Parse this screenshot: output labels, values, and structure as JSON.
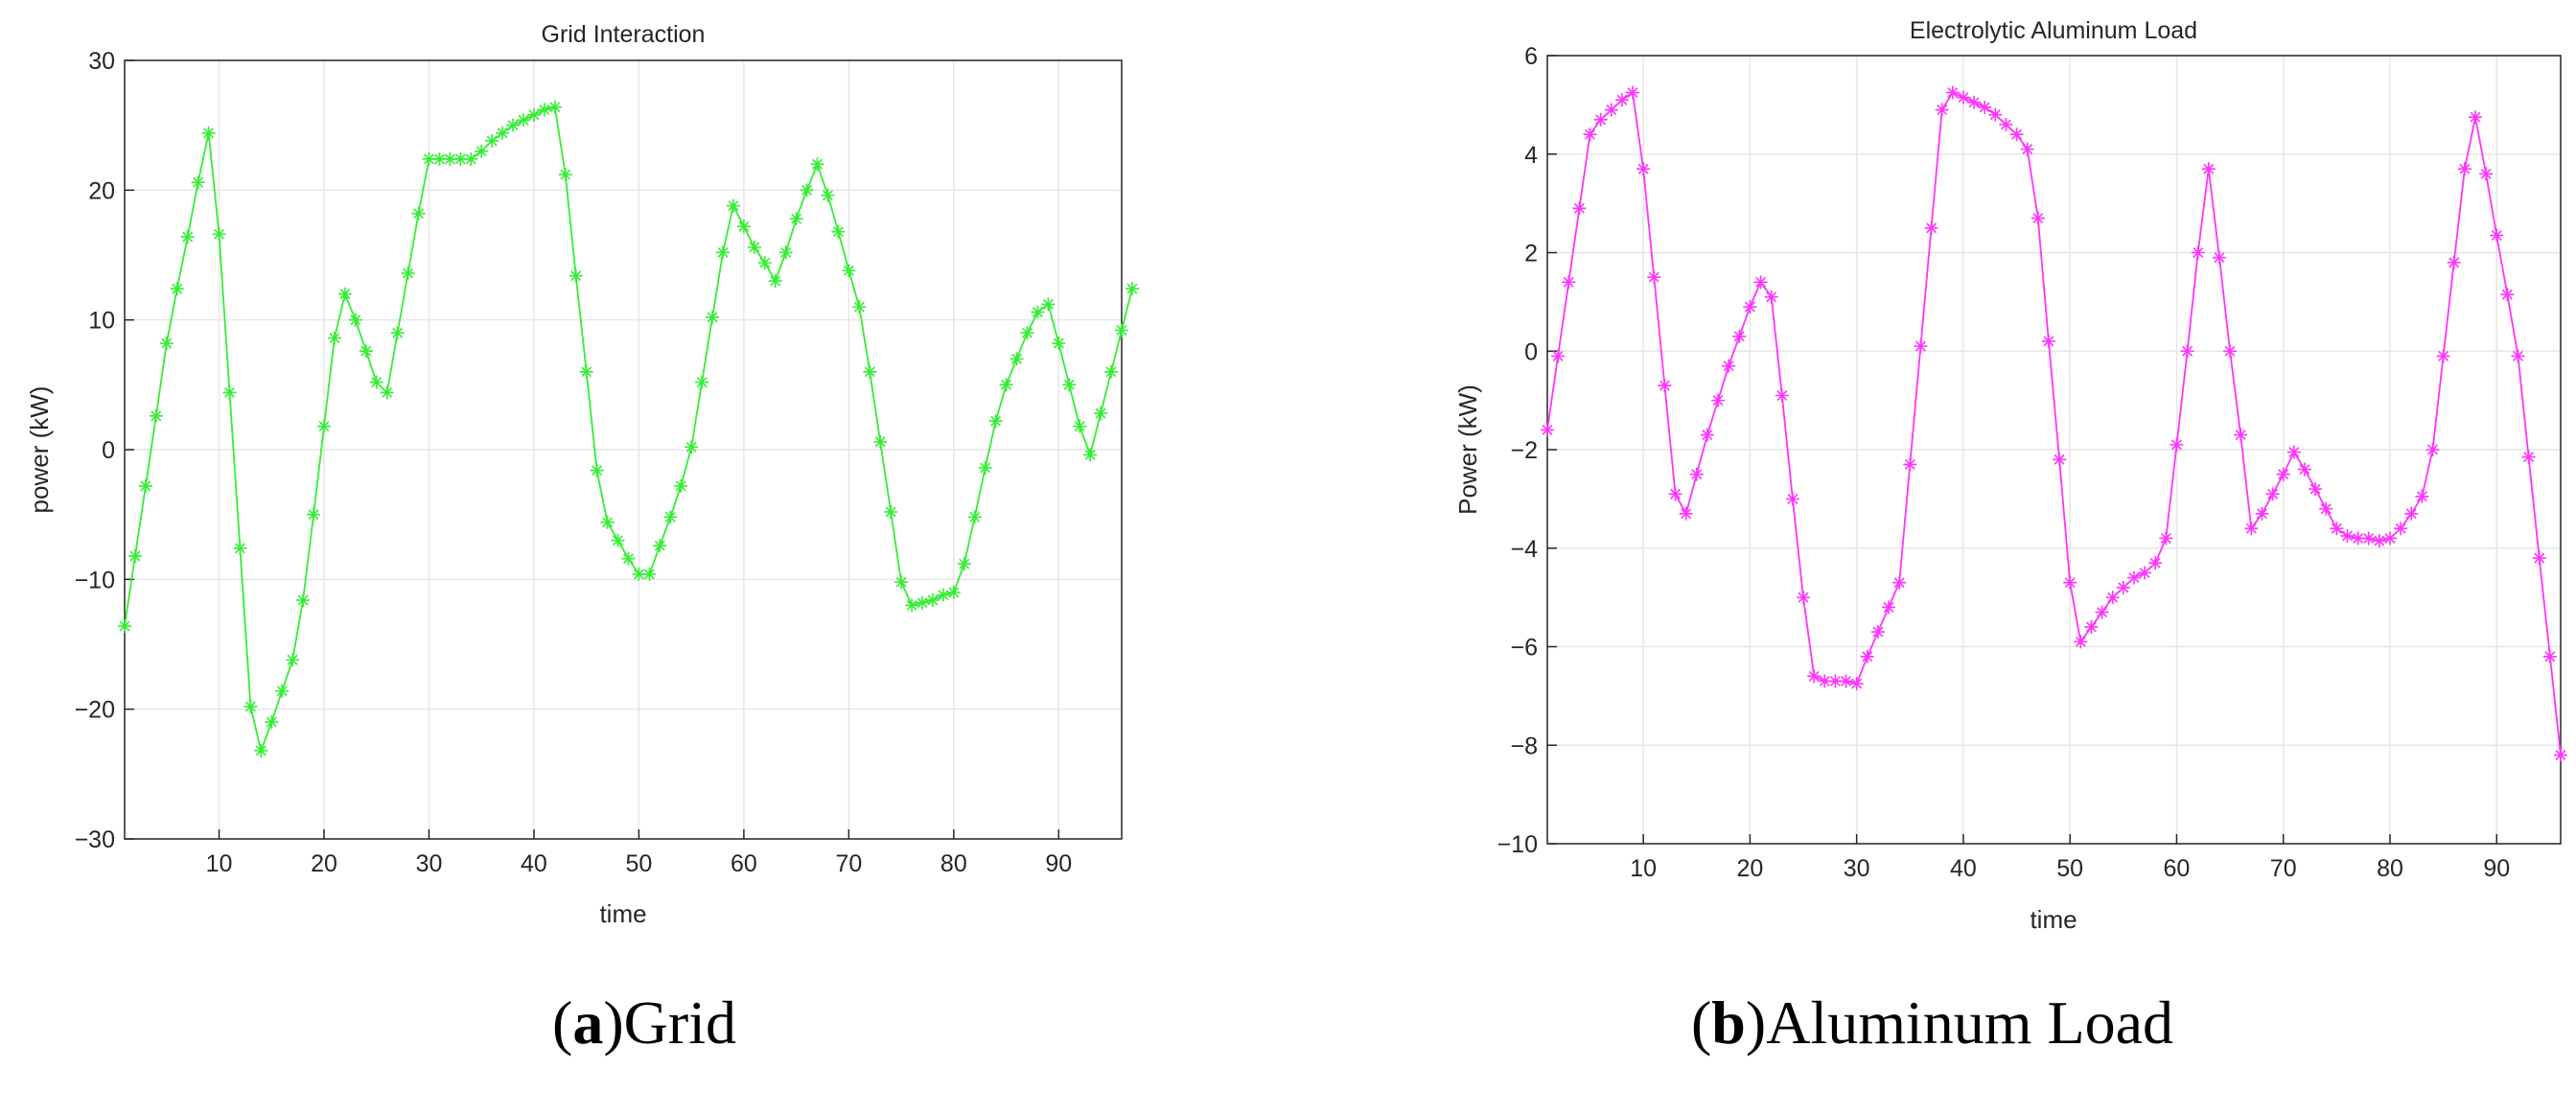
{
  "chart_data": [
    {
      "type": "line",
      "title": "Grid Interaction",
      "xlabel": "time",
      "ylabel": "power (kW)",
      "xlim": [
        1,
        96
      ],
      "ylim": [
        -30,
        30
      ],
      "xticks": [
        10,
        20,
        30,
        40,
        50,
        60,
        70,
        80,
        90
      ],
      "yticks": [
        -30,
        -20,
        -10,
        0,
        10,
        20,
        30
      ],
      "grid": true,
      "color": "#33ee33",
      "marker": "asterisk",
      "series": [
        {
          "values": [
            -13.6,
            -8.2,
            -2.8,
            2.6,
            8.2,
            12.4,
            16.4,
            20.6,
            24.4,
            16.6,
            4.4,
            -7.6,
            -19.8,
            -23.2,
            -21.0,
            -18.6,
            -16.2,
            -11.6,
            -5.0,
            1.8,
            8.6,
            12.0,
            10.0,
            7.6,
            5.2,
            4.4,
            9.0,
            13.6,
            18.2,
            22.4,
            22.4,
            22.4,
            22.4,
            22.4,
            23.0,
            23.8,
            24.4,
            25.0,
            25.4,
            25.8,
            26.2,
            26.4,
            21.2,
            13.4,
            6.0,
            -1.6,
            -5.6,
            -7.0,
            -8.4,
            -9.6,
            -9.6,
            -7.4,
            -5.2,
            -2.8,
            0.2,
            5.2,
            10.2,
            15.2,
            18.8,
            17.2,
            15.6,
            14.4,
            13.0,
            15.2,
            17.8,
            20.0,
            22.0,
            19.6,
            16.8,
            13.8,
            11.0,
            6.0,
            0.6,
            -4.8,
            -10.2,
            -12.0,
            -11.8,
            -11.6,
            -11.2,
            -11.0,
            -8.8,
            -5.2,
            -1.4,
            2.2,
            5.0,
            7.0,
            9.0,
            10.6,
            11.2,
            8.2,
            5.0,
            1.8,
            -0.4,
            2.8,
            6.0,
            9.2,
            12.4
          ]
        }
      ]
    },
    {
      "type": "line",
      "title": "Electrolytic Aluminum Load",
      "xlabel": "time",
      "ylabel": "Power (kW)",
      "xlim": [
        1,
        96
      ],
      "ylim": [
        -10,
        6
      ],
      "xticks": [
        10,
        20,
        30,
        40,
        50,
        60,
        70,
        80,
        90
      ],
      "yticks": [
        -10,
        -8,
        -6,
        -4,
        -2,
        0,
        2,
        4,
        6
      ],
      "grid": true,
      "color": "#ff33ff",
      "marker": "asterisk",
      "series": [
        {
          "values": [
            -1.6,
            -0.1,
            1.4,
            2.9,
            4.4,
            4.7,
            4.9,
            5.1,
            5.25,
            3.7,
            1.5,
            -0.7,
            -2.9,
            -3.3,
            -2.5,
            -1.7,
            -1.0,
            -0.3,
            0.3,
            0.9,
            1.4,
            1.1,
            -0.9,
            -3.0,
            -5.0,
            -6.6,
            -6.7,
            -6.7,
            -6.7,
            -6.75,
            -6.2,
            -5.7,
            -5.2,
            -4.7,
            -2.3,
            0.1,
            2.5,
            4.9,
            5.25,
            5.15,
            5.05,
            4.95,
            4.8,
            4.6,
            4.4,
            4.1,
            2.7,
            0.2,
            -2.2,
            -4.7,
            -5.9,
            -5.6,
            -5.3,
            -5.0,
            -4.8,
            -4.6,
            -4.5,
            -4.3,
            -3.8,
            -1.9,
            0.0,
            2.0,
            3.7,
            1.9,
            0.0,
            -1.7,
            -3.6,
            -3.3,
            -2.9,
            -2.5,
            -2.05,
            -2.4,
            -2.8,
            -3.2,
            -3.6,
            -3.75,
            -3.8,
            -3.8,
            -3.85,
            -3.8,
            -3.6,
            -3.3,
            -2.95,
            -2.0,
            -0.1,
            1.8,
            3.7,
            4.75,
            3.6,
            2.35,
            1.15,
            -0.1,
            -2.15,
            -4.2,
            -6.2,
            -8.2
          ]
        }
      ]
    }
  ],
  "captions": [
    {
      "letter": "a",
      "text": "Grid"
    },
    {
      "letter": "b",
      "text": "Aluminum Load"
    }
  ]
}
